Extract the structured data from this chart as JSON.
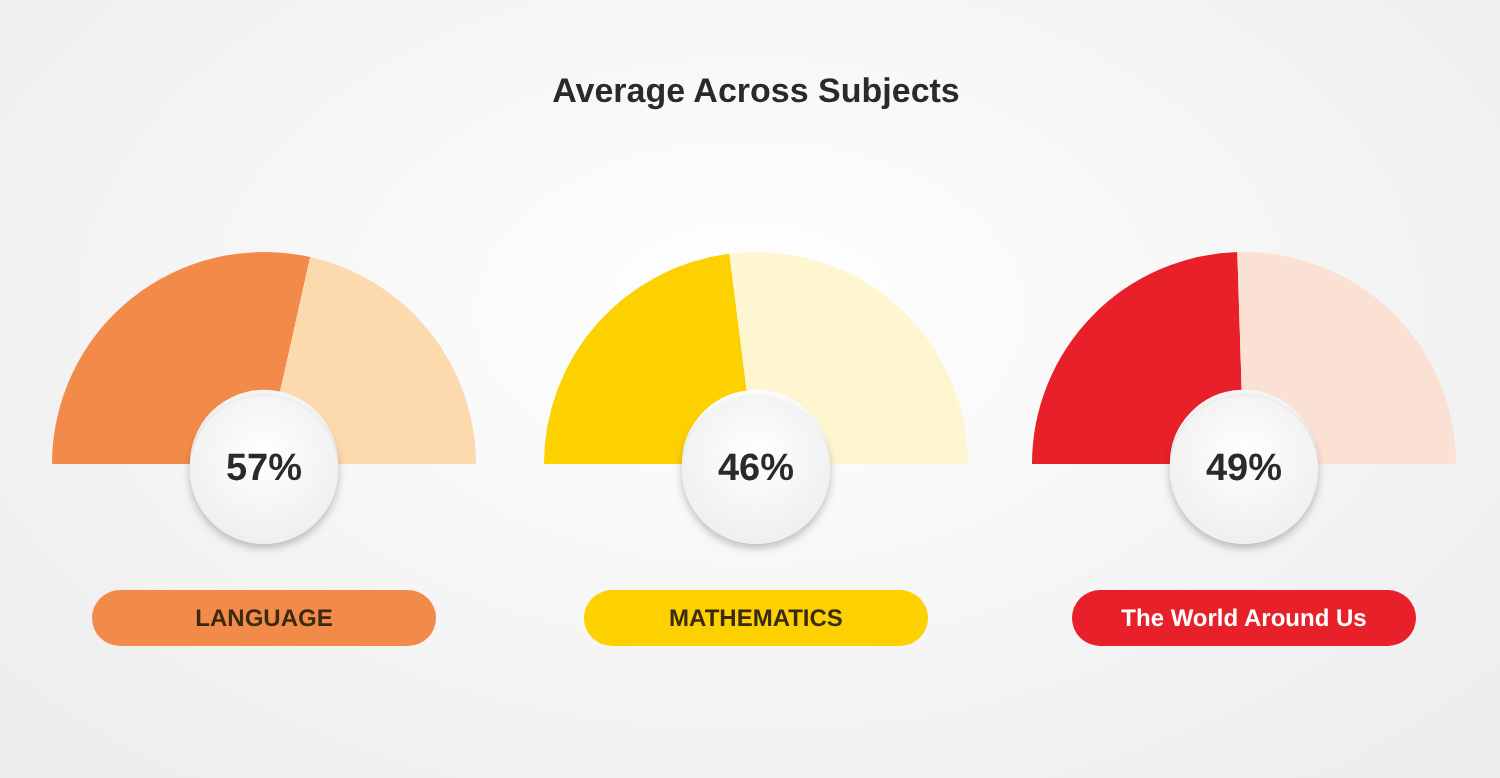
{
  "chart_data": [
    {
      "type": "donut",
      "categories": [
        null,
        null
      ],
      "values": [
        57,
        43
      ],
      "colors": [
        "#f28a4a",
        "#fdd9ae"
      ],
      "annotations": [
        "57%"
      ],
      "xlabel": "LANGUAGE"
    },
    {
      "type": "donut",
      "title": "Average Across Subjects",
      "categories": [
        null,
        null
      ],
      "values": [
        46,
        54
      ],
      "colors": [
        "#fdd000",
        "#fef6d0"
      ],
      "annotations": [
        "46%"
      ],
      "xlabel": "MATHEMATICS"
    },
    {
      "type": "donut",
      "categories": [
        null,
        null
      ],
      "values": [
        49,
        51
      ],
      "colors": [
        "#e8202a",
        "#fbe0d4"
      ],
      "annotations": [
        "49%"
      ],
      "xlabel": "The World Around Us"
    }
  ]
}
